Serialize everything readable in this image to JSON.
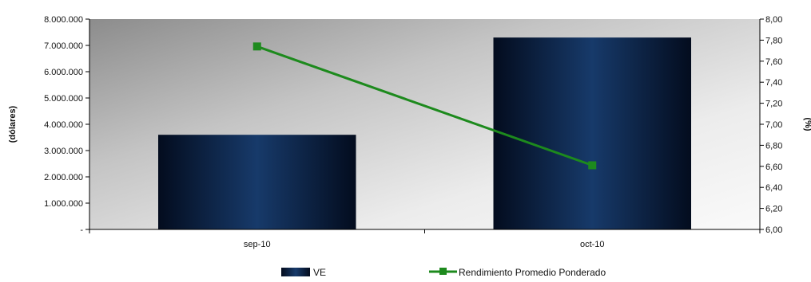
{
  "chart_data": {
    "type": "bar",
    "categories": [
      "sep-10",
      "oct-10"
    ],
    "series": [
      {
        "name": "VE",
        "type": "bar",
        "axis": "left",
        "values": [
          3600000,
          7300000
        ],
        "color": "#0b2446"
      },
      {
        "name": "Rendimiento Promedio Ponderado",
        "type": "line",
        "axis": "right",
        "values": [
          7.74,
          6.61
        ],
        "color": "#1d8a1d"
      }
    ],
    "ylabel": "(dólares)",
    "y2label": "(%)",
    "ylim": [
      0,
      8000000
    ],
    "y2lim": [
      6.0,
      8.0
    ],
    "yticks": [
      "-",
      "1.000.000",
      "2.000.000",
      "3.000.000",
      "4.000.000",
      "5.000.000",
      "6.000.000",
      "7.000.000",
      "8.000.000"
    ],
    "y2ticks": [
      "6,00",
      "6,20",
      "6,40",
      "6,60",
      "6,80",
      "7,00",
      "7,20",
      "7,40",
      "7,60",
      "7,80",
      "8,00"
    ],
    "legend_position": "bottom",
    "grid": false
  }
}
